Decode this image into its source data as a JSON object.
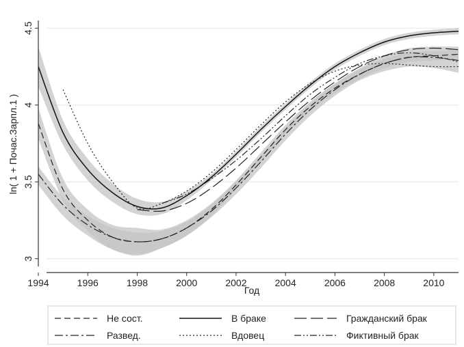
{
  "chart_data": {
    "type": "line",
    "xlabel": "Год",
    "ylabel": "ln( 1 + Почас.Зарпл.1 )",
    "xlim": [
      1994,
      2011
    ],
    "ylim": [
      2.95,
      4.55
    ],
    "x_ticks": [
      1994,
      1996,
      1998,
      2000,
      2002,
      2004,
      2006,
      2008,
      2010
    ],
    "y_ticks": [
      3,
      3.5,
      4,
      4.5
    ],
    "x_tick_labels": [
      "1994",
      "1996",
      "1998",
      "2000",
      "2002",
      "2004",
      "2006",
      "2008",
      "2010"
    ],
    "y_tick_labels": [
      "3",
      "3.5",
      "4",
      "4.5"
    ],
    "grid": "horizontal",
    "legend_position": "bottom",
    "series": [
      {
        "name": "Не сост.",
        "dash": "dashed",
        "color": "#222222",
        "points": [
          [
            1994,
            3.88
          ],
          [
            1995,
            3.45
          ],
          [
            1996,
            3.25
          ],
          [
            1997,
            3.14
          ],
          [
            1998,
            3.11
          ],
          [
            1999,
            3.13
          ],
          [
            2000,
            3.2
          ],
          [
            2001,
            3.32
          ],
          [
            2002,
            3.48
          ],
          [
            2003,
            3.66
          ],
          [
            2004,
            3.84
          ],
          [
            2005,
            3.99
          ],
          [
            2006,
            4.11
          ],
          [
            2007,
            4.2
          ],
          [
            2008,
            4.27
          ],
          [
            2009,
            4.31
          ],
          [
            2010,
            4.32
          ],
          [
            2011,
            4.33
          ]
        ],
        "band": [
          [
            1994,
            3.78,
            3.98
          ],
          [
            1995,
            3.38,
            3.52
          ],
          [
            1996,
            3.18,
            3.32
          ],
          [
            1997,
            3.06,
            3.22
          ],
          [
            1998,
            3.03,
            3.2
          ],
          [
            1999,
            3.07,
            3.19
          ],
          [
            2000,
            3.15,
            3.25
          ],
          [
            2001,
            3.28,
            3.36
          ],
          [
            2002,
            3.45,
            3.51
          ],
          [
            2003,
            3.63,
            3.69
          ],
          [
            2004,
            3.81,
            3.87
          ],
          [
            2005,
            3.96,
            4.02
          ],
          [
            2006,
            4.08,
            4.14
          ],
          [
            2007,
            4.17,
            4.23
          ],
          [
            2008,
            4.24,
            4.3
          ],
          [
            2009,
            4.28,
            4.34
          ],
          [
            2010,
            4.29,
            4.35
          ],
          [
            2011,
            4.3,
            4.36
          ]
        ]
      },
      {
        "name": "В браке",
        "dash": "solid",
        "color": "#111111",
        "points": [
          [
            1994,
            4.25
          ],
          [
            1995,
            3.82
          ],
          [
            1996,
            3.58
          ],
          [
            1997,
            3.43
          ],
          [
            1998,
            3.34
          ],
          [
            1999,
            3.33
          ],
          [
            2000,
            3.41
          ],
          [
            2001,
            3.53
          ],
          [
            2002,
            3.68
          ],
          [
            2003,
            3.84
          ],
          [
            2004,
            3.99
          ],
          [
            2005,
            4.13
          ],
          [
            2006,
            4.25
          ],
          [
            2007,
            4.34
          ],
          [
            2008,
            4.41
          ],
          [
            2009,
            4.45
          ],
          [
            2010,
            4.47
          ],
          [
            2011,
            4.48
          ]
        ],
        "band": [
          [
            1994,
            4.12,
            4.38
          ],
          [
            1995,
            3.74,
            3.9
          ],
          [
            1996,
            3.51,
            3.65
          ],
          [
            1997,
            3.37,
            3.49
          ],
          [
            1998,
            3.29,
            3.39
          ],
          [
            1999,
            3.29,
            3.37
          ],
          [
            2000,
            3.38,
            3.44
          ],
          [
            2001,
            3.51,
            3.55
          ],
          [
            2002,
            3.66,
            3.7
          ],
          [
            2003,
            3.82,
            3.86
          ],
          [
            2004,
            3.97,
            4.01
          ],
          [
            2005,
            4.11,
            4.15
          ],
          [
            2006,
            4.23,
            4.27
          ],
          [
            2007,
            4.32,
            4.36
          ],
          [
            2008,
            4.39,
            4.43
          ],
          [
            2009,
            4.43,
            4.47
          ],
          [
            2010,
            4.45,
            4.49
          ],
          [
            2011,
            4.46,
            4.5
          ]
        ]
      },
      {
        "name": "Гражданский брак",
        "dash": "longdash",
        "color": "#222222",
        "points": [
          [
            1998,
            3.32
          ],
          [
            1999,
            3.31
          ],
          [
            2000,
            3.36
          ],
          [
            2001,
            3.46
          ],
          [
            2002,
            3.59
          ],
          [
            2003,
            3.74
          ],
          [
            2004,
            3.89
          ],
          [
            2005,
            4.03
          ],
          [
            2006,
            4.15
          ],
          [
            2007,
            4.25
          ],
          [
            2008,
            4.32
          ],
          [
            2009,
            4.36
          ],
          [
            2010,
            4.37
          ],
          [
            2011,
            4.36
          ]
        ]
      },
      {
        "name": "Развед.",
        "dash": "dashdot",
        "color": "#222222",
        "points": [
          [
            1994,
            3.55
          ],
          [
            1995,
            3.35
          ],
          [
            1996,
            3.22
          ],
          [
            1997,
            3.14
          ],
          [
            1998,
            3.11
          ],
          [
            1999,
            3.13
          ],
          [
            2000,
            3.2
          ],
          [
            2001,
            3.31
          ],
          [
            2002,
            3.46
          ],
          [
            2003,
            3.63
          ],
          [
            2004,
            3.81
          ],
          [
            2005,
            3.97
          ],
          [
            2006,
            4.1
          ],
          [
            2007,
            4.2
          ],
          [
            2008,
            4.27
          ],
          [
            2009,
            4.31
          ],
          [
            2010,
            4.31
          ],
          [
            2011,
            4.29
          ]
        ],
        "band": [
          [
            1994,
            3.48,
            3.6
          ],
          [
            1995,
            3.28,
            3.4
          ],
          [
            1996,
            3.15,
            3.28
          ],
          [
            1997,
            3.06,
            3.2
          ],
          [
            1998,
            3.02,
            3.17
          ],
          [
            1999,
            3.07,
            3.18
          ],
          [
            2000,
            3.15,
            3.24
          ],
          [
            2001,
            3.27,
            3.35
          ],
          [
            2002,
            3.42,
            3.5
          ],
          [
            2003,
            3.59,
            3.67
          ],
          [
            2004,
            3.77,
            3.85
          ],
          [
            2005,
            3.93,
            4.01
          ],
          [
            2006,
            4.06,
            4.14
          ],
          [
            2007,
            4.16,
            4.24
          ],
          [
            2008,
            4.22,
            4.32
          ],
          [
            2009,
            4.25,
            4.37
          ],
          [
            2010,
            4.24,
            4.38
          ],
          [
            2011,
            4.21,
            4.38
          ]
        ]
      },
      {
        "name": "Вдовец",
        "dash": "dotted",
        "color": "#222222",
        "points": [
          [
            1995,
            4.1
          ],
          [
            1996,
            3.75
          ],
          [
            1997,
            3.5
          ],
          [
            1998,
            3.33
          ],
          [
            1999,
            3.36
          ],
          [
            2000,
            3.44
          ],
          [
            2001,
            3.56
          ],
          [
            2002,
            3.71
          ],
          [
            2003,
            3.87
          ],
          [
            2004,
            4.02
          ],
          [
            2005,
            4.14
          ],
          [
            2006,
            4.22
          ],
          [
            2007,
            4.26
          ],
          [
            2008,
            4.27
          ],
          [
            2009,
            4.26
          ],
          [
            2010,
            4.25
          ],
          [
            2011,
            4.25
          ]
        ]
      },
      {
        "name": "Фиктивный брак",
        "dash": "dashdotdot",
        "color": "#222222",
        "points": [
          [
            1999,
            3.36
          ],
          [
            2000,
            3.42
          ],
          [
            2001,
            3.52
          ],
          [
            2002,
            3.64
          ],
          [
            2003,
            3.78
          ],
          [
            2004,
            3.93
          ],
          [
            2005,
            4.07
          ],
          [
            2006,
            4.18
          ],
          [
            2007,
            4.27
          ],
          [
            2008,
            4.32
          ],
          [
            2009,
            4.34
          ],
          [
            2010,
            4.32
          ],
          [
            2011,
            4.28
          ]
        ]
      }
    ]
  }
}
